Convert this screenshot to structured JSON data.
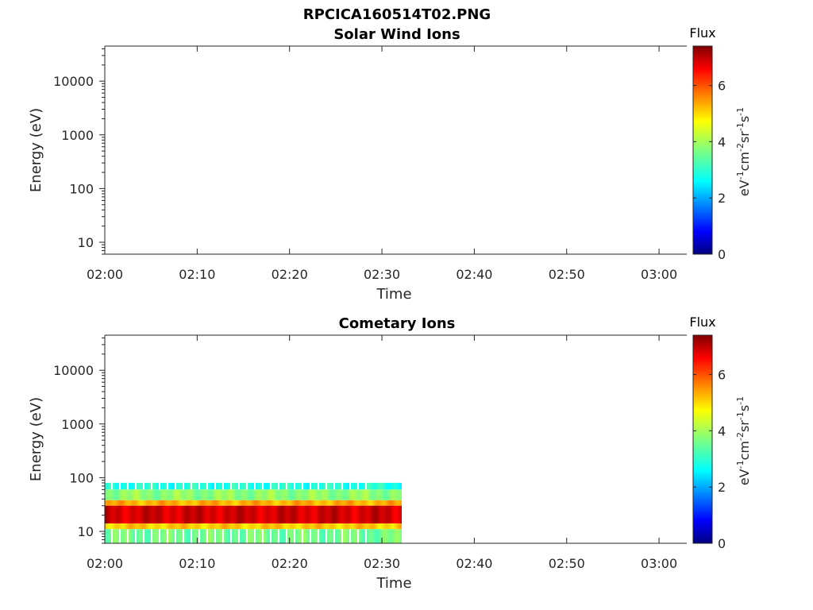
{
  "figure": {
    "title": "RPCICA160514T02.PNG"
  },
  "chart_data": [
    {
      "type": "heatmap",
      "title": "Solar Wind Ions",
      "xlabel": "Time",
      "ylabel": "Energy (eV)",
      "x_ticks": [
        "02:00",
        "02:10",
        "02:20",
        "02:30",
        "02:40",
        "02:50",
        "03:00"
      ],
      "y_ticks": [
        "10",
        "100",
        "1000",
        "10000"
      ],
      "y_scale": "log",
      "ylim": [
        6,
        45000
      ],
      "xlim": [
        "02:00",
        "03:03"
      ],
      "colorbar": {
        "title": "Flux",
        "label": "eV-1cm-2sr-1s-1",
        "ticks": [
          "0",
          "2",
          "4",
          "6"
        ],
        "range": [
          0,
          7.4
        ],
        "colormap": "jet"
      },
      "data": []
    },
    {
      "type": "heatmap",
      "title": "Cometary Ions",
      "xlabel": "Time",
      "ylabel": "Energy (eV)",
      "x_ticks": [
        "02:00",
        "02:10",
        "02:20",
        "02:30",
        "02:40",
        "02:50",
        "03:00"
      ],
      "y_ticks": [
        "10",
        "100",
        "1000",
        "10000"
      ],
      "y_scale": "log",
      "ylim": [
        6,
        45000
      ],
      "xlim": [
        "02:00",
        "03:03"
      ],
      "colorbar": {
        "title": "Flux",
        "label": "eV-1cm-2sr-1s-1",
        "ticks": [
          "0",
          "2",
          "4",
          "6"
        ],
        "range": [
          0,
          7.4
        ],
        "colormap": "jet"
      },
      "data_extent": {
        "time_start": "02:00",
        "time_end": "02:32",
        "energy_min_eV": 6,
        "energy_max_eV": 80
      },
      "bands": [
        {
          "energy_low_eV": 60,
          "energy_high_eV": 80,
          "flux": 3.0
        },
        {
          "energy_low_eV": 38,
          "energy_high_eV": 60,
          "flux": 3.8
        },
        {
          "energy_low_eV": 30,
          "energy_high_eV": 38,
          "flux": 5.2
        },
        {
          "energy_low_eV": 14,
          "energy_high_eV": 30,
          "flux": 6.8
        },
        {
          "energy_low_eV": 11,
          "energy_high_eV": 14,
          "flux": 5.0
        },
        {
          "energy_low_eV": 6,
          "energy_high_eV": 11,
          "flux": 3.6
        }
      ]
    }
  ]
}
